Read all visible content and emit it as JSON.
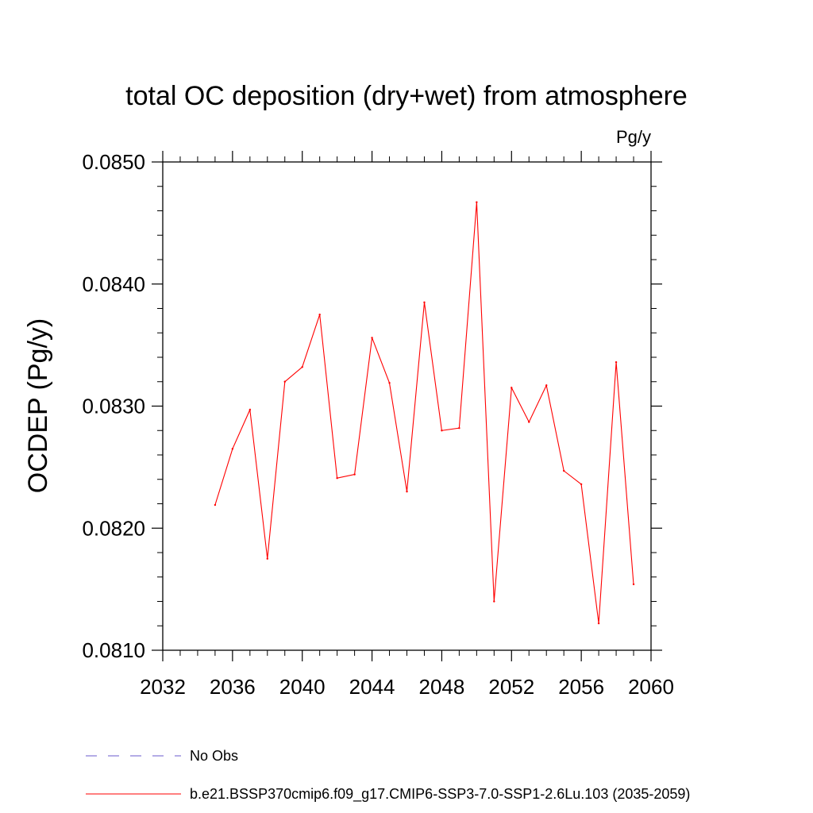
{
  "chart_data": {
    "type": "line",
    "title": "total OC deposition (dry+wet) from atmosphere",
    "units_label": "Pg/y",
    "xlabel": "",
    "ylabel": "OCDEP  (Pg/y)",
    "xlim": [
      2032,
      2060
    ],
    "ylim": [
      0.081,
      0.085
    ],
    "x_ticks": [
      2032,
      2036,
      2040,
      2044,
      2048,
      2052,
      2056,
      2060
    ],
    "x_tick_labels": [
      "2032",
      "2036",
      "2040",
      "2044",
      "2048",
      "2052",
      "2056",
      "2060"
    ],
    "x_minor_step": 1,
    "y_ticks": [
      0.081,
      0.082,
      0.083,
      0.084,
      0.085
    ],
    "y_tick_labels": [
      "0.0810",
      "0.0820",
      "0.0830",
      "0.0840",
      "0.0850"
    ],
    "y_minor_step": 0.0002,
    "grid": false,
    "series": [
      {
        "name": "b.e21.BSSP370cmip6.f09_g17.CMIP6-SSP3-7.0-SSP1-2.6Lu.103 (2035-2059)",
        "color": "#ff0000",
        "x": [
          2035,
          2036,
          2037,
          2038,
          2039,
          2040,
          2041,
          2042,
          2043,
          2044,
          2045,
          2046,
          2047,
          2048,
          2049,
          2050,
          2051,
          2052,
          2053,
          2054,
          2055,
          2056,
          2057,
          2058,
          2059
        ],
        "values": [
          0.08219,
          0.08265,
          0.08297,
          0.08175,
          0.0832,
          0.08332,
          0.08375,
          0.08241,
          0.08244,
          0.08356,
          0.08319,
          0.0823,
          0.08385,
          0.0828,
          0.08282,
          0.08467,
          0.0814,
          0.08315,
          0.08287,
          0.08317,
          0.08247,
          0.08236,
          0.08122,
          0.08336,
          0.08154
        ]
      }
    ],
    "legend": [
      {
        "label": "No Obs",
        "color": "#6a5acd",
        "style": "dashed"
      },
      {
        "label": "b.e21.BSSP370cmip6.f09_g17.CMIP6-SSP3-7.0-SSP1-2.6Lu.103 (2035-2059)",
        "color": "#ff0000",
        "style": "solid"
      }
    ],
    "legend_position": "bottom"
  }
}
